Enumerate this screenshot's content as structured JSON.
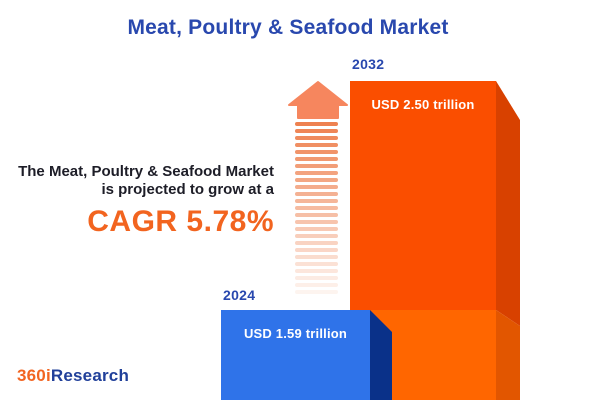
{
  "title": "Meat, Poultry & Seafood Market",
  "growth_note": {
    "line1": "The Meat, Poultry & Seafood Market",
    "line2": "is projected to grow at a",
    "cagr": "CAGR 5.78%"
  },
  "chart_data": {
    "type": "bar",
    "categories": [
      "2024",
      "2032"
    ],
    "values": [
      1.59,
      2.5
    ],
    "value_unit": "USD trillion",
    "value_labels": [
      "USD 1.59 trillion",
      "USD 2.50 trillion"
    ],
    "cagr_percent": 5.78,
    "title": "Meat, Poultry & Seafood Market",
    "bar_colors": [
      "#2f73e9",
      "#fa4e00"
    ],
    "legend": "none",
    "style": "3d-infographic-bars",
    "ylim": [
      0,
      2.5
    ]
  },
  "bars": [
    {
      "year": "2024",
      "label": "USD 1.59 trillion"
    },
    {
      "year": "2032",
      "label": "USD 2.50 trillion"
    }
  ],
  "arrow": {
    "segment_count": 25,
    "segment_color": "#ee8150",
    "head_color": "#f6865e"
  },
  "logo": {
    "part1": "360i",
    "part2": "Research"
  },
  "colors": {
    "title_blue": "#2948ae",
    "accent_orange": "#f2641f",
    "text_dark": "#1d1d27",
    "bar_blue_face": "#2f73e9",
    "bar_blue_side": "#0a3189",
    "bar_orange_face_upper": "#fa4e00",
    "bar_orange_face_lower": "#ff6600",
    "bar_orange_side_upper": "#d84100",
    "bar_orange_side_lower": "#e25600"
  }
}
